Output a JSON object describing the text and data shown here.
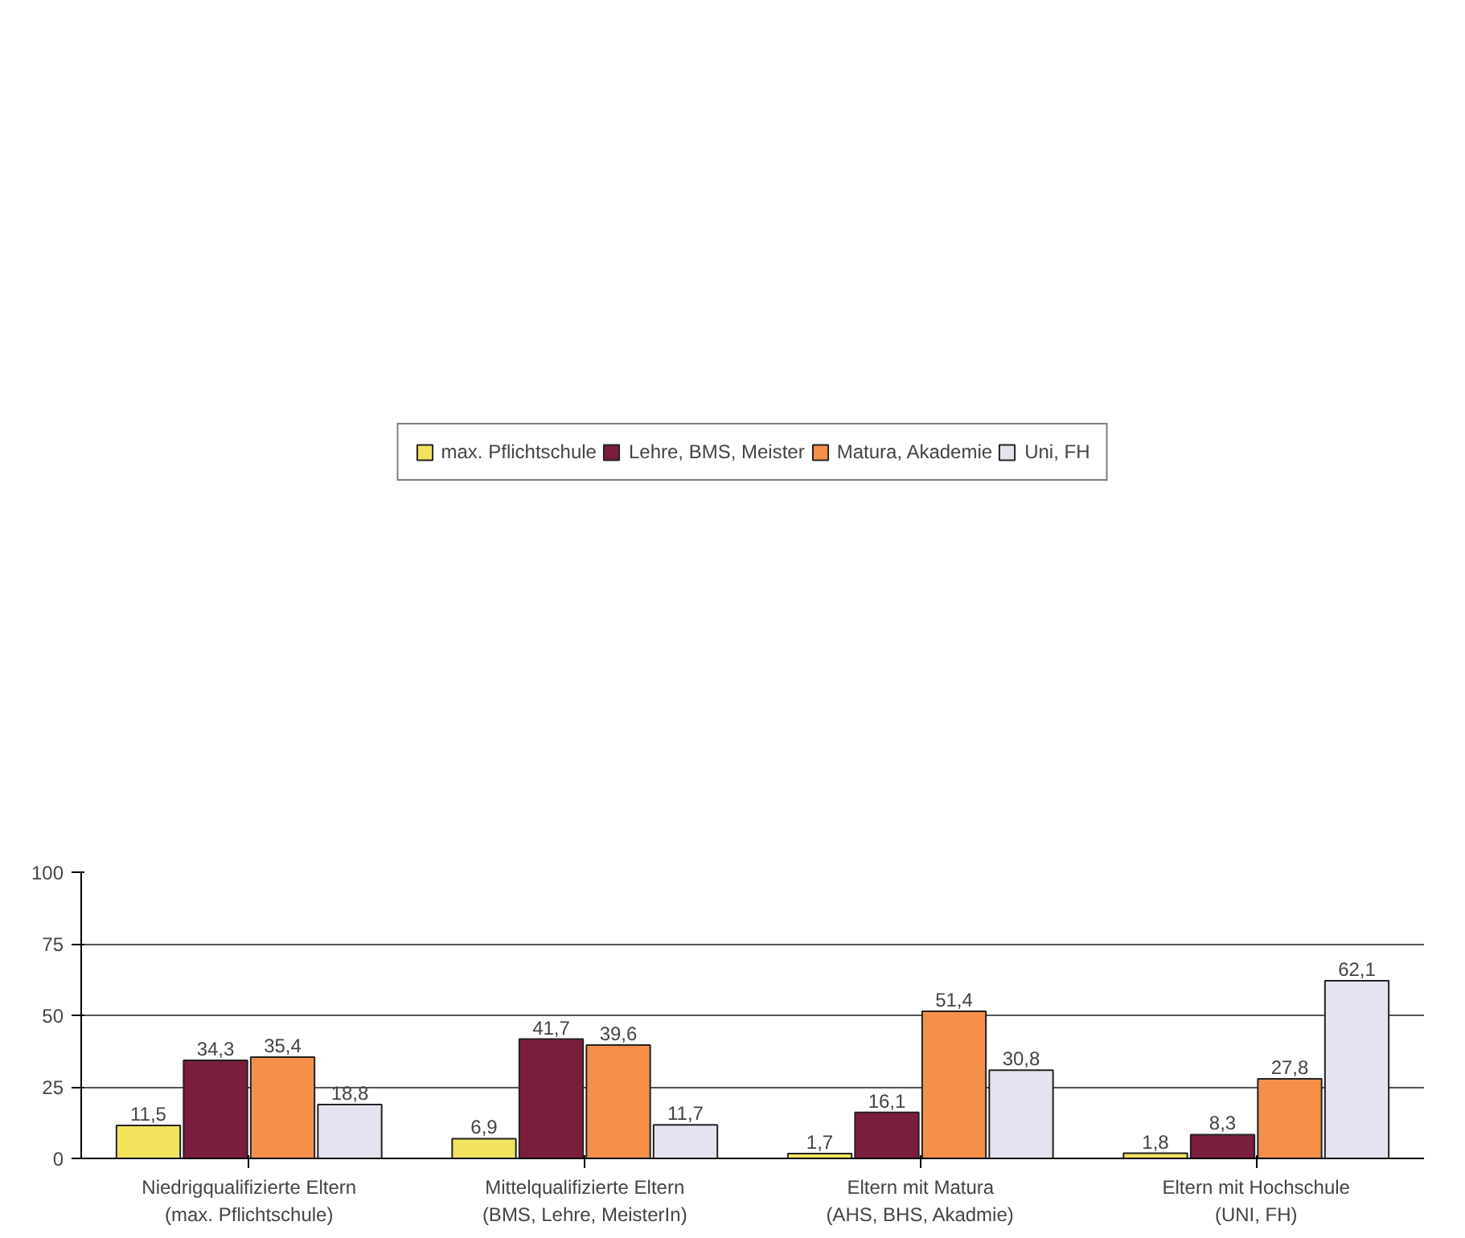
{
  "chart_data": {
    "type": "bar",
    "categories": [
      "Niedrigqualifizierte Eltern\n(max. Pflichtschule)",
      "Mittelqualifizierte Eltern\n(BMS, Lehre, MeisterIn)",
      "Eltern mit Matura\n(AHS, BHS, Akadmie)",
      "Eltern mit Hochschule\n(UNI, FH)"
    ],
    "series": [
      {
        "name": "max. Pflichtschule",
        "color": "#f2e35e",
        "values": [
          11.5,
          6.9,
          1.7,
          1.8
        ],
        "value_labels": [
          "11,5",
          "6,9",
          "1,7",
          "1,8"
        ]
      },
      {
        "name": "Lehre, BMS, Meister",
        "color": "#7a1e3e",
        "values": [
          34.3,
          41.7,
          16.1,
          8.3
        ],
        "value_labels": [
          "34,3",
          "41,7",
          "16,1",
          "8,3"
        ]
      },
      {
        "name": "Matura, Akademie",
        "color": "#f5904a",
        "values": [
          35.4,
          39.6,
          51.4,
          27.8
        ],
        "value_labels": [
          "35,4",
          "39,6",
          "51,4",
          "27,8"
        ]
      },
      {
        "name": "Uni, FH",
        "color": "#e4e4f0",
        "values": [
          18.8,
          11.7,
          30.8,
          62.1
        ],
        "value_labels": [
          "18,8",
          "11,7",
          "30,8",
          "62,1"
        ]
      }
    ],
    "ylim": [
      0,
      100
    ],
    "yticks": [
      0,
      25,
      50,
      75,
      100
    ],
    "grid": "y",
    "legend": "top"
  }
}
